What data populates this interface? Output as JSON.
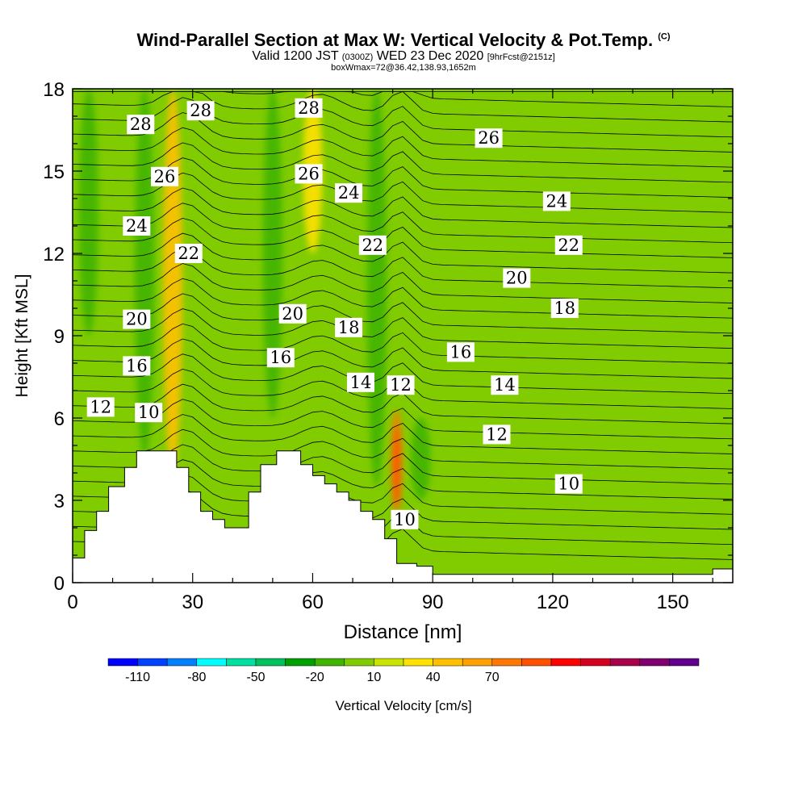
{
  "header": {
    "title": "Wind-Parallel Section at Max W: Vertical Velocity & Pot.Temp.",
    "copyright": "(C)",
    "subtitle_a": "Valid 1200 JST",
    "subtitle_utc": "(0300Z)",
    "subtitle_b": "WED 23 Dec 2020",
    "subtitle_fcst": "[9hrFcst@2151z]",
    "boxline": "boxWmax=72@36.42,138.93,1652m"
  },
  "chart_data": {
    "type": "heatmap",
    "title": "Wind-Parallel Section at Max W: Vertical Velocity & Pot.Temp.",
    "xlabel": "Distance [nm]",
    "ylabel": "Height [Kft MSL]",
    "xlim": [
      0,
      165
    ],
    "ylim": [
      0,
      18
    ],
    "x_ticks": [
      0,
      30,
      60,
      90,
      120,
      150
    ],
    "y_ticks": [
      0,
      3,
      6,
      9,
      12,
      15,
      18
    ],
    "colorbar": {
      "label": "Vertical Velocity [cm/s]",
      "tick_labels": [
        -110,
        -80,
        -50,
        -20,
        10,
        40,
        70
      ],
      "min": -125,
      "step": 15,
      "colors": [
        "#0000ff",
        "#0040ff",
        "#0080ff",
        "#00ffff",
        "#00e0a0",
        "#00c060",
        "#00a000",
        "#40b400",
        "#80cc00",
        "#c8e400",
        "#ffe100",
        "#ffc000",
        "#ffa000",
        "#ff7800",
        "#ff5000",
        "#ff0000",
        "#d40020",
        "#a8004a",
        "#800070",
        "#60008c"
      ]
    },
    "velocity_features": [
      {
        "x": 25,
        "y_range": [
          4,
          18
        ],
        "value": 45
      },
      {
        "x": 81,
        "y_range": [
          2.5,
          6.3
        ],
        "value": 72
      },
      {
        "x": 60,
        "y_range": [
          12,
          18
        ],
        "value": 25
      },
      {
        "x": 4,
        "y_range": [
          9,
          18
        ],
        "value": -20
      },
      {
        "x": 18,
        "y_range": [
          4.5,
          18
        ],
        "value": -20
      },
      {
        "x": 50,
        "y_range": [
          6,
          18
        ],
        "value": -20
      },
      {
        "x": 76,
        "y_range": [
          3.5,
          18
        ],
        "value": -20
      },
      {
        "x": 87,
        "y_range": [
          3,
          6
        ],
        "value": -20
      }
    ],
    "theta_contour_labels": [
      {
        "text": "28",
        "x": 17,
        "y": 16.7
      },
      {
        "text": "28",
        "x": 32,
        "y": 17.2
      },
      {
        "text": "28",
        "x": 59,
        "y": 17.3
      },
      {
        "text": "26",
        "x": 104,
        "y": 16.2
      },
      {
        "text": "26",
        "x": 23,
        "y": 14.8
      },
      {
        "text": "26",
        "x": 59,
        "y": 14.9
      },
      {
        "text": "24",
        "x": 69,
        "y": 14.2
      },
      {
        "text": "24",
        "x": 121,
        "y": 13.9
      },
      {
        "text": "24",
        "x": 16,
        "y": 13
      },
      {
        "text": "22",
        "x": 29,
        "y": 12
      },
      {
        "text": "22",
        "x": 75,
        "y": 12.3
      },
      {
        "text": "22",
        "x": 124,
        "y": 12.3
      },
      {
        "text": "20",
        "x": 111,
        "y": 11.1
      },
      {
        "text": "20",
        "x": 16,
        "y": 9.6
      },
      {
        "text": "20",
        "x": 55,
        "y": 9.8
      },
      {
        "text": "18",
        "x": 123,
        "y": 10
      },
      {
        "text": "18",
        "x": 69,
        "y": 9.3
      },
      {
        "text": "16",
        "x": 97,
        "y": 8.4
      },
      {
        "text": "16",
        "x": 16,
        "y": 7.9
      },
      {
        "text": "16",
        "x": 52,
        "y": 8.2
      },
      {
        "text": "14",
        "x": 72,
        "y": 7.3
      },
      {
        "text": "14",
        "x": 108,
        "y": 7.2
      },
      {
        "text": "12",
        "x": 82,
        "y": 7.2
      },
      {
        "text": "12",
        "x": 7,
        "y": 6.4
      },
      {
        "text": "12",
        "x": 106,
        "y": 5.4
      },
      {
        "text": "10",
        "x": 19,
        "y": 6.2
      },
      {
        "text": "10",
        "x": 124,
        "y": 3.6
      },
      {
        "text": "10",
        "x": 83,
        "y": 2.3
      }
    ],
    "terrain": [
      [
        0,
        0.9
      ],
      [
        3,
        0.9
      ],
      [
        3,
        1.9
      ],
      [
        6,
        1.9
      ],
      [
        6,
        2.6
      ],
      [
        9,
        2.6
      ],
      [
        9,
        3.5
      ],
      [
        13,
        3.5
      ],
      [
        13,
        4.2
      ],
      [
        16,
        4.2
      ],
      [
        16,
        4.8
      ],
      [
        26,
        4.8
      ],
      [
        26,
        4.2
      ],
      [
        29,
        4.2
      ],
      [
        29,
        3.3
      ],
      [
        32,
        3.3
      ],
      [
        32,
        2.6
      ],
      [
        35,
        2.6
      ],
      [
        35,
        2.3
      ],
      [
        38,
        2.3
      ],
      [
        38,
        2
      ],
      [
        44,
        2
      ],
      [
        44,
        3.3
      ],
      [
        47,
        3.3
      ],
      [
        47,
        4.3
      ],
      [
        51,
        4.3
      ],
      [
        51,
        4.8
      ],
      [
        57,
        4.8
      ],
      [
        57,
        4.3
      ],
      [
        60,
        4.3
      ],
      [
        60,
        3.9
      ],
      [
        63,
        3.9
      ],
      [
        63,
        3.6
      ],
      [
        66,
        3.6
      ],
      [
        66,
        3.3
      ],
      [
        69,
        3.3
      ],
      [
        69,
        3
      ],
      [
        72,
        3
      ],
      [
        72,
        2.6
      ],
      [
        75,
        2.6
      ],
      [
        75,
        2.3
      ],
      [
        78,
        2.3
      ],
      [
        78,
        1.6
      ],
      [
        81,
        1.6
      ],
      [
        81,
        0.7
      ],
      [
        86,
        0.7
      ],
      [
        86,
        0.6
      ],
      [
        90,
        0.6
      ],
      [
        90,
        0.3
      ],
      [
        160,
        0.3
      ],
      [
        160,
        0.5
      ],
      [
        165,
        0.5
      ],
      [
        165,
        0
      ],
      [
        0,
        0
      ]
    ]
  }
}
